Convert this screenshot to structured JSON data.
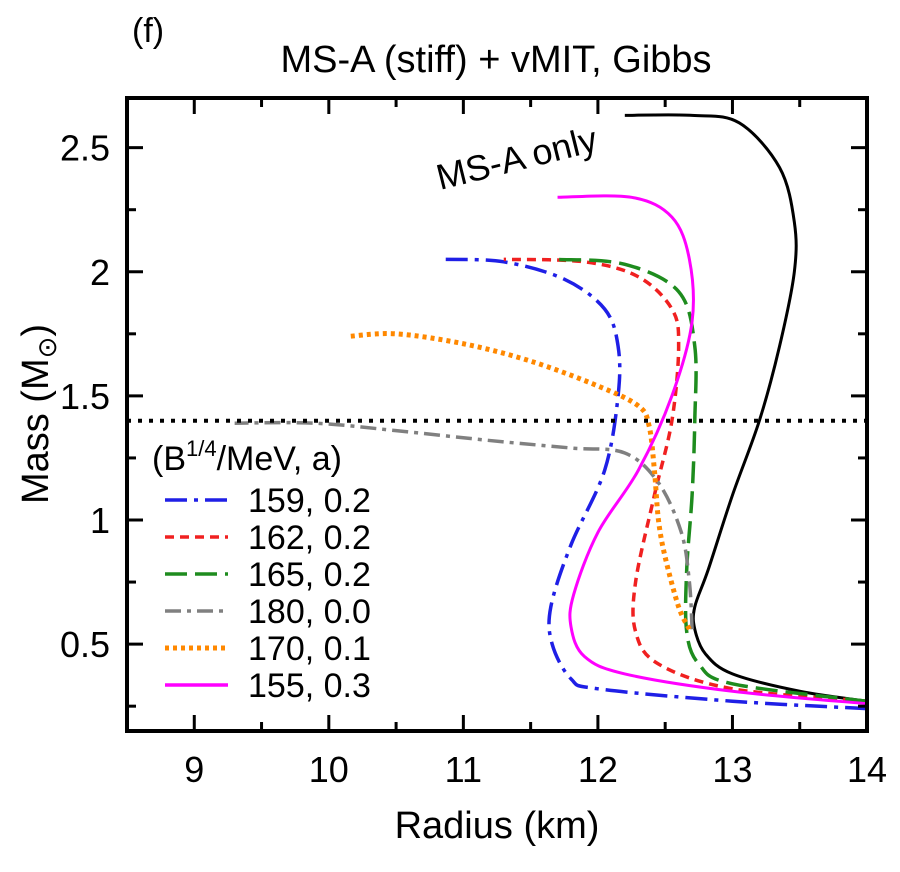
{
  "panel_label": "(f)",
  "chart_data": {
    "type": "line",
    "title": "MS-A (stiff) + vMIT, Gibbs",
    "xlabel": "Radius (km)",
    "ylabel_main": "Mass (M",
    "ylabel_sub": "⊙",
    "ylabel_close": ")",
    "xlim": [
      8.5,
      14
    ],
    "ylim": [
      0.15,
      2.7
    ],
    "xticks": [
      9,
      10,
      11,
      12,
      13,
      14
    ],
    "yticks": [
      0.5,
      1,
      1.5,
      2,
      2.5
    ],
    "xtick_labels": [
      "9",
      "10",
      "11",
      "12",
      "13",
      "14"
    ],
    "ytick_labels": [
      "0.5",
      "1",
      "1.5",
      "2",
      "2.5"
    ],
    "reference_line": {
      "y": 1.4,
      "style": "dotted",
      "color": "#000000"
    },
    "annotation": "MS-A only",
    "legend": {
      "title_main": "(B",
      "title_sup": "1/4",
      "title_rest": "/MeV, a)",
      "placement": "lower-left"
    },
    "series": [
      {
        "name": "MS-A only",
        "color": "#000000",
        "dash": "solid",
        "points": [
          [
            14.0,
            0.27
          ],
          [
            13.5,
            0.31
          ],
          [
            13.0,
            0.38
          ],
          [
            12.8,
            0.46
          ],
          [
            12.72,
            0.56
          ],
          [
            12.72,
            0.65
          ],
          [
            12.82,
            0.8
          ],
          [
            13.0,
            1.1
          ],
          [
            13.2,
            1.4
          ],
          [
            13.35,
            1.7
          ],
          [
            13.46,
            2.0
          ],
          [
            13.46,
            2.2
          ],
          [
            13.35,
            2.42
          ],
          [
            13.05,
            2.6
          ],
          [
            12.7,
            2.63
          ],
          [
            12.2,
            2.63
          ]
        ]
      },
      {
        "name": "159, 0.2",
        "color": "#1f1fe6",
        "dash": "longdashdot",
        "points": [
          [
            14.0,
            0.24
          ],
          [
            13.0,
            0.27
          ],
          [
            12.0,
            0.32
          ],
          [
            11.8,
            0.36
          ],
          [
            11.66,
            0.5
          ],
          [
            11.65,
            0.65
          ],
          [
            11.8,
            0.9
          ],
          [
            12.05,
            1.2
          ],
          [
            12.15,
            1.5
          ],
          [
            12.15,
            1.7
          ],
          [
            12.05,
            1.85
          ],
          [
            11.75,
            1.97
          ],
          [
            11.3,
            2.04
          ],
          [
            10.85,
            2.05
          ]
        ]
      },
      {
        "name": "162, 0.2",
        "color": "#f02020",
        "dash": "shortdash",
        "points": [
          [
            14.0,
            0.27
          ],
          [
            13.0,
            0.32
          ],
          [
            12.45,
            0.42
          ],
          [
            12.28,
            0.55
          ],
          [
            12.28,
            0.75
          ],
          [
            12.42,
            1.1
          ],
          [
            12.55,
            1.4
          ],
          [
            12.6,
            1.7
          ],
          [
            12.55,
            1.85
          ],
          [
            12.3,
            1.98
          ],
          [
            11.9,
            2.04
          ],
          [
            11.3,
            2.05
          ]
        ]
      },
      {
        "name": "165, 0.2",
        "color": "#1e8c1e",
        "dash": "longdash",
        "points": [
          [
            14.0,
            0.27
          ],
          [
            13.0,
            0.34
          ],
          [
            12.75,
            0.42
          ],
          [
            12.66,
            0.55
          ],
          [
            12.66,
            0.8
          ],
          [
            12.7,
            1.1
          ],
          [
            12.72,
            1.4
          ],
          [
            12.72,
            1.7
          ],
          [
            12.6,
            1.92
          ],
          [
            12.2,
            2.03
          ],
          [
            11.7,
            2.05
          ]
        ]
      },
      {
        "name": "180, 0.0",
        "color": "#808080",
        "dash": "dashdot",
        "points": [
          [
            12.7,
            0.56
          ],
          [
            12.68,
            0.75
          ],
          [
            12.62,
            0.95
          ],
          [
            12.45,
            1.15
          ],
          [
            12.2,
            1.27
          ],
          [
            11.8,
            1.29
          ],
          [
            11.2,
            1.32
          ],
          [
            10.5,
            1.36
          ],
          [
            9.9,
            1.39
          ],
          [
            9.3,
            1.39
          ]
        ]
      },
      {
        "name": "170, 0.1",
        "color": "#ff8800",
        "dash": "dotted",
        "points": [
          [
            12.68,
            0.56
          ],
          [
            12.6,
            0.65
          ],
          [
            12.5,
            0.85
          ],
          [
            12.45,
            1.0
          ],
          [
            12.42,
            1.2
          ],
          [
            12.38,
            1.38
          ],
          [
            12.3,
            1.46
          ],
          [
            12.0,
            1.54
          ],
          [
            11.5,
            1.64
          ],
          [
            11.0,
            1.71
          ],
          [
            10.5,
            1.75
          ],
          [
            10.15,
            1.74
          ]
        ]
      },
      {
        "name": "155, 0.3",
        "color": "#ff00ff",
        "dash": "solid",
        "points": [
          [
            14.0,
            0.26
          ],
          [
            13.0,
            0.31
          ],
          [
            12.2,
            0.38
          ],
          [
            11.9,
            0.45
          ],
          [
            11.8,
            0.57
          ],
          [
            11.82,
            0.7
          ],
          [
            12.0,
            0.95
          ],
          [
            12.3,
            1.2
          ],
          [
            12.55,
            1.5
          ],
          [
            12.7,
            1.8
          ],
          [
            12.68,
            2.05
          ],
          [
            12.55,
            2.22
          ],
          [
            12.25,
            2.3
          ],
          [
            11.7,
            2.3
          ]
        ]
      }
    ]
  }
}
